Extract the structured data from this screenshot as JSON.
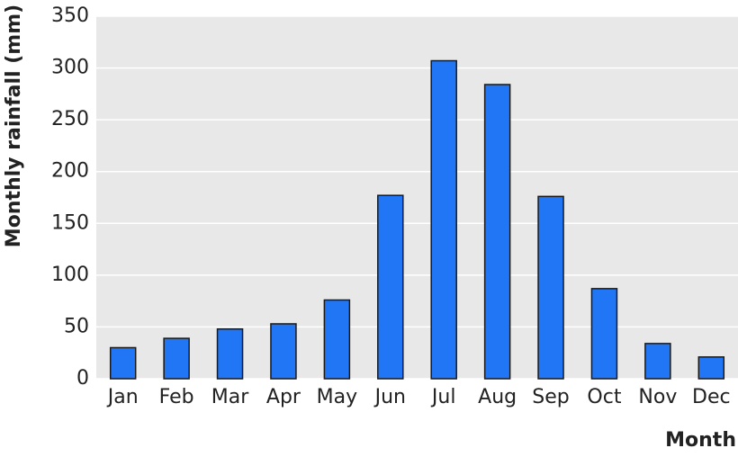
{
  "chart_data": {
    "type": "bar",
    "x_label": "Month",
    "y_label": "Monthly rainfall (mm)",
    "categories": [
      "Jan",
      "Feb",
      "Mar",
      "Apr",
      "May",
      "Jun",
      "Jul",
      "Aug",
      "Sep",
      "Oct",
      "Nov",
      "Dec"
    ],
    "values": [
      30,
      39,
      48,
      53,
      76,
      177,
      307,
      284,
      176,
      87,
      34,
      21
    ],
    "color": "#2176f5",
    "ylim": [
      0,
      350
    ],
    "yticks": [
      0,
      50,
      100,
      150,
      200,
      250,
      300,
      350
    ],
    "grid": true
  }
}
